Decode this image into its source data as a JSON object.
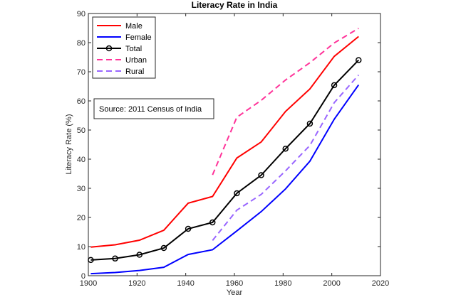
{
  "chart_data": {
    "type": "line",
    "title": "Literacy Rate in India",
    "xlabel": "Year",
    "ylabel": "Literacy Rate (%)",
    "xlim": [
      1900,
      2020
    ],
    "ylim": [
      0,
      90
    ],
    "xticks": [
      1900,
      1920,
      1940,
      1960,
      1980,
      2000,
      2020
    ],
    "yticks": [
      0,
      10,
      20,
      30,
      40,
      50,
      60,
      70,
      80,
      90
    ],
    "grid": false,
    "legend_position": "top-left",
    "annotation": "Source: 2011 Census of India",
    "series": [
      {
        "name": "Male",
        "color": "#ff0000",
        "dash": "solid",
        "marker": "none",
        "x": [
          1901,
          1911,
          1921,
          1931,
          1941,
          1951,
          1961,
          1971,
          1981,
          1991,
          2001,
          2011
        ],
        "values": [
          9.8,
          10.6,
          12.2,
          15.6,
          24.9,
          27.2,
          40.4,
          45.9,
          56.4,
          64.1,
          75.3,
          82.1
        ]
      },
      {
        "name": "Female",
        "color": "#0000ff",
        "dash": "solid",
        "marker": "none",
        "x": [
          1901,
          1911,
          1921,
          1931,
          1941,
          1951,
          1961,
          1971,
          1981,
          1991,
          2001,
          2011
        ],
        "values": [
          0.7,
          1.1,
          1.8,
          2.9,
          7.3,
          8.9,
          15.4,
          22.0,
          29.8,
          39.3,
          53.7,
          65.5
        ]
      },
      {
        "name": "Total",
        "color": "#000000",
        "dash": "solid",
        "marker": "circle",
        "x": [
          1901,
          1911,
          1921,
          1931,
          1941,
          1951,
          1961,
          1971,
          1981,
          1991,
          2001,
          2011
        ],
        "values": [
          5.4,
          5.9,
          7.2,
          9.5,
          16.1,
          18.3,
          28.3,
          34.5,
          43.6,
          52.2,
          65.4,
          74.0
        ]
      },
      {
        "name": "Urban",
        "color": "#ff3399",
        "dash": "dashed",
        "marker": "none",
        "x": [
          1951,
          1961,
          1971,
          1981,
          1991,
          2001,
          2011
        ],
        "values": [
          34.6,
          54.4,
          60.2,
          67.2,
          73.1,
          79.9,
          84.9
        ]
      },
      {
        "name": "Rural",
        "color": "#9966ff",
        "dash": "dashed",
        "marker": "none",
        "x": [
          1951,
          1961,
          1971,
          1981,
          1991,
          2001,
          2011
        ],
        "values": [
          12.1,
          22.5,
          27.9,
          36.0,
          44.7,
          59.4,
          68.9
        ]
      }
    ]
  }
}
